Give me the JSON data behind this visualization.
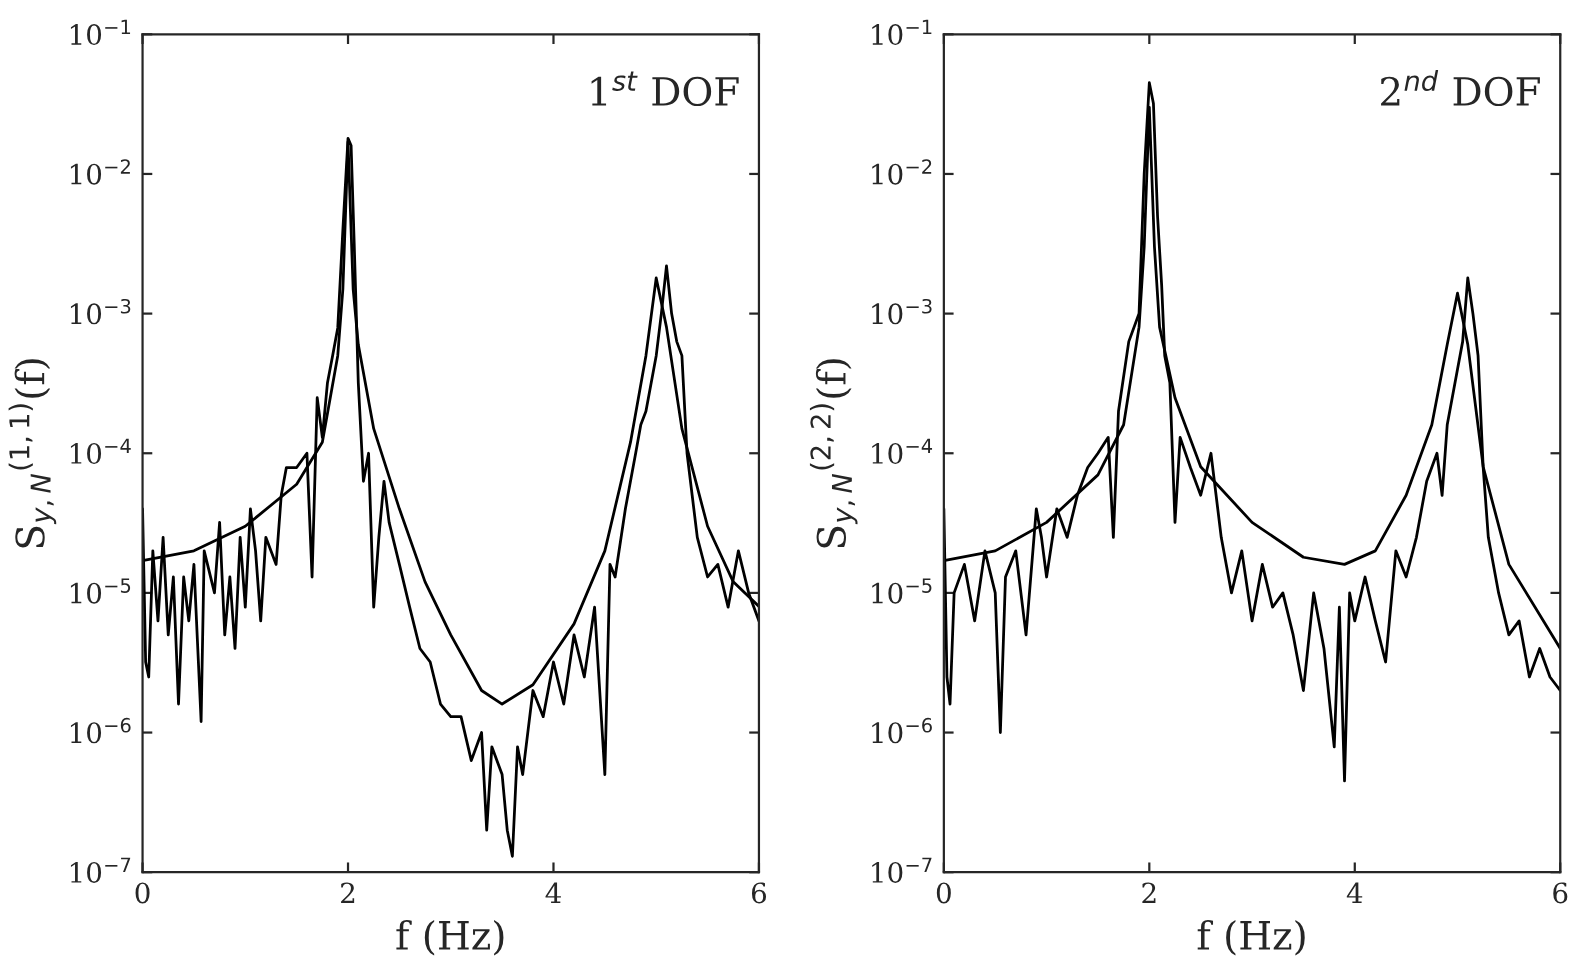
{
  "chart_data": [
    {
      "type": "line",
      "xlabel": "f (Hz)",
      "ylabel": "S$_{y,N}$$^{(1,1)}$(f)",
      "annotations": [
        "1$^{st}$ DOF"
      ],
      "log": "y",
      "grid": false,
      "xlim": [
        0,
        6
      ],
      "xticks": [
        0,
        2,
        4,
        6
      ],
      "ylim": [
        1e-07,
        0.1
      ],
      "yticks": [
        {
          "value": 1e-07,
          "label": "10$^{−7}$"
        },
        {
          "value": 1e-06,
          "label": "10$^{−6}$"
        },
        {
          "value": 1e-05,
          "label": "10$^{−5}$"
        },
        {
          "value": 0.0001,
          "label": "10$^{−4}$"
        },
        {
          "value": 0.001,
          "label": "10$^{−3}$"
        },
        {
          "value": 0.01,
          "label": "10$^{−2}$"
        },
        {
          "value": 0.1,
          "label": "10$^{−1}$"
        }
      ],
      "series": [
        {
          "color": "#000000",
          "x": [
            0,
            0.03,
            0.06,
            0.1,
            0.15,
            0.2,
            0.25,
            0.3,
            0.35,
            0.4,
            0.45,
            0.5,
            0.57,
            0.6,
            0.7,
            0.75,
            0.8,
            0.85,
            0.9,
            0.95,
            1.0,
            1.05,
            1.1,
            1.15,
            1.2,
            1.3,
            1.35,
            1.4,
            1.5,
            1.6,
            1.65,
            1.7,
            1.75,
            1.8,
            1.85,
            1.9,
            1.95,
            2.0,
            2.03,
            2.06,
            2.1,
            2.15,
            2.2,
            2.25,
            2.3,
            2.35,
            2.4,
            2.5,
            2.6,
            2.7,
            2.8,
            2.9,
            3.0,
            3.1,
            3.2,
            3.3,
            3.35,
            3.4,
            3.5,
            3.55,
            3.6,
            3.65,
            3.7,
            3.8,
            3.9,
            4.0,
            4.1,
            4.2,
            4.3,
            4.4,
            4.5,
            4.55,
            4.6,
            4.7,
            4.8,
            4.85,
            4.9,
            5.0,
            5.05,
            5.1,
            5.15,
            5.2,
            5.25,
            5.3,
            5.35,
            5.4,
            5.5,
            5.6,
            5.7,
            5.8,
            5.9,
            6.0
          ],
          "values": [
            4e-05,
            3.2e-06,
            2.5e-06,
            2e-05,
            6.3e-06,
            2.5e-05,
            5e-06,
            1.3e-05,
            1.6e-06,
            1.3e-05,
            6.3e-06,
            1.6e-05,
            1.2e-06,
            2e-05,
            1e-05,
            3.2e-05,
            5e-06,
            1.3e-05,
            4e-06,
            2.5e-05,
            7.9e-06,
            4e-05,
            2e-05,
            6.3e-06,
            2.5e-05,
            1.6e-05,
            5e-05,
            7.9e-05,
            7.9e-05,
            0.0001,
            1.3e-05,
            0.00025,
            0.00013,
            0.00032,
            0.0005,
            0.00079,
            0.004,
            0.018,
            0.016,
            0.0032,
            0.00032,
            6.3e-05,
            0.0001,
            7.9e-06,
            2.5e-05,
            6.3e-05,
            3.2e-05,
            1.6e-05,
            7.9e-06,
            4e-06,
            3.2e-06,
            1.6e-06,
            1.3e-06,
            1.3e-06,
            6.3e-07,
            1e-06,
            2e-07,
            7.9e-07,
            5e-07,
            2e-07,
            1.3e-07,
            7.9e-07,
            5e-07,
            2e-06,
            1.3e-06,
            3.2e-06,
            1.6e-06,
            5e-06,
            2.5e-06,
            7.9e-06,
            5e-07,
            1.6e-05,
            1.3e-05,
            4e-05,
            0.0001,
            0.00016,
            0.0002,
            0.0005,
            0.001,
            0.0022,
            0.001,
            0.00063,
            0.0005,
            0.0001,
            5e-05,
            2.5e-05,
            1.3e-05,
            1.6e-05,
            7.9e-06,
            2e-05,
            1e-05,
            6.3e-06
          ]
        },
        {
          "color": "#000000",
          "x": [
            0,
            0.5,
            1,
            1.5,
            1.75,
            1.9,
            1.95,
            2.0,
            2.05,
            2.1,
            2.25,
            2.5,
            2.75,
            3,
            3.3,
            3.5,
            3.8,
            4.2,
            4.5,
            4.75,
            4.9,
            5.0,
            5.1,
            5.25,
            5.5,
            5.75,
            6
          ],
          "values": [
            1.7e-05,
            2e-05,
            3e-05,
            6e-05,
            0.00012,
            0.0005,
            0.0015,
            0.017,
            0.0015,
            0.0006,
            0.00015,
            4e-05,
            1.2e-05,
            5e-06,
            2e-06,
            1.6e-06,
            2.2e-06,
            6e-06,
            2e-05,
            0.00012,
            0.0005,
            0.0018,
            0.0008,
            0.00015,
            3e-05,
            1.2e-05,
            8e-06
          ]
        }
      ]
    },
    {
      "type": "line",
      "xlabel": "f (Hz)",
      "ylabel": "S$_{y,N}$$^{(2,2)}$(f)",
      "annotations": [
        "2$^{nd}$ DOF"
      ],
      "log": "y",
      "grid": false,
      "xlim": [
        0,
        6
      ],
      "xticks": [
        0,
        2,
        4,
        6
      ],
      "ylim": [
        1e-07,
        0.1
      ],
      "yticks": [
        {
          "value": 1e-07,
          "label": "10$^{−7}$"
        },
        {
          "value": 1e-06,
          "label": "10$^{−6}$"
        },
        {
          "value": 1e-05,
          "label": "10$^{−5}$"
        },
        {
          "value": 0.0001,
          "label": "10$^{−4}$"
        },
        {
          "value": 0.001,
          "label": "10$^{−3}$"
        },
        {
          "value": 0.01,
          "label": "10$^{−2}$"
        },
        {
          "value": 0.1,
          "label": "10$^{−1}$"
        }
      ],
      "series": [
        {
          "color": "#000000",
          "x": [
            0,
            0.03,
            0.06,
            0.1,
            0.2,
            0.3,
            0.4,
            0.5,
            0.55,
            0.6,
            0.7,
            0.8,
            0.9,
            0.95,
            1.0,
            1.1,
            1.2,
            1.3,
            1.4,
            1.5,
            1.6,
            1.65,
            1.7,
            1.8,
            1.9,
            1.95,
            2.0,
            2.04,
            2.08,
            2.12,
            2.15,
            2.2,
            2.25,
            2.3,
            2.4,
            2.5,
            2.6,
            2.7,
            2.8,
            2.9,
            3.0,
            3.1,
            3.2,
            3.3,
            3.4,
            3.5,
            3.6,
            3.7,
            3.8,
            3.85,
            3.9,
            3.95,
            4.0,
            4.1,
            4.2,
            4.3,
            4.4,
            4.5,
            4.6,
            4.7,
            4.8,
            4.85,
            4.9,
            5.0,
            5.05,
            5.1,
            5.15,
            5.2,
            5.25,
            5.3,
            5.4,
            5.5,
            5.6,
            5.7,
            5.8,
            5.9,
            6.0
          ],
          "values": [
            4e-05,
            2.5e-06,
            1.6e-06,
            1e-05,
            1.6e-05,
            6.3e-06,
            2e-05,
            1e-05,
            1e-06,
            1.3e-05,
            2e-05,
            5e-06,
            4e-05,
            2.5e-05,
            1.3e-05,
            4e-05,
            2.5e-05,
            5e-05,
            7.9e-05,
            0.0001,
            0.00013,
            2.5e-05,
            0.0002,
            0.00063,
            0.001,
            0.01,
            0.045,
            0.032,
            0.005,
            0.0016,
            0.0005,
            0.00032,
            3.2e-05,
            0.00013,
            7.9e-05,
            5e-05,
            0.0001,
            2.5e-05,
            1e-05,
            2e-05,
            6.3e-06,
            1.6e-05,
            7.9e-06,
            1e-05,
            5e-06,
            2e-06,
            1e-05,
            4e-06,
            7.9e-07,
            7.9e-06,
            4.5e-07,
            1e-05,
            6.3e-06,
            1.3e-05,
            6.3e-06,
            3.2e-06,
            2e-05,
            1.3e-05,
            2.5e-05,
            6.3e-05,
            0.0001,
            5e-05,
            0.00016,
            0.0004,
            0.00063,
            0.0018,
            0.001,
            0.0005,
            7.9e-05,
            2.5e-05,
            1e-05,
            5e-06,
            6.3e-06,
            2.5e-06,
            4e-06,
            2.5e-06,
            2e-06
          ]
        },
        {
          "color": "#000000",
          "x": [
            0,
            0.5,
            1,
            1.5,
            1.75,
            1.9,
            1.95,
            2.0,
            2.05,
            2.1,
            2.25,
            2.5,
            3.0,
            3.5,
            3.9,
            4.2,
            4.5,
            4.75,
            4.9,
            5.0,
            5.1,
            5.25,
            5.5,
            6
          ],
          "values": [
            1.7e-05,
            2e-05,
            3.2e-05,
            7e-05,
            0.00016,
            0.0008,
            0.003,
            0.03,
            0.003,
            0.0008,
            0.00025,
            8e-05,
            3.2e-05,
            1.8e-05,
            1.6e-05,
            2e-05,
            5e-05,
            0.00016,
            0.0006,
            0.0014,
            0.0006,
            8e-05,
            1.6e-05,
            4e-06
          ]
        }
      ]
    }
  ]
}
